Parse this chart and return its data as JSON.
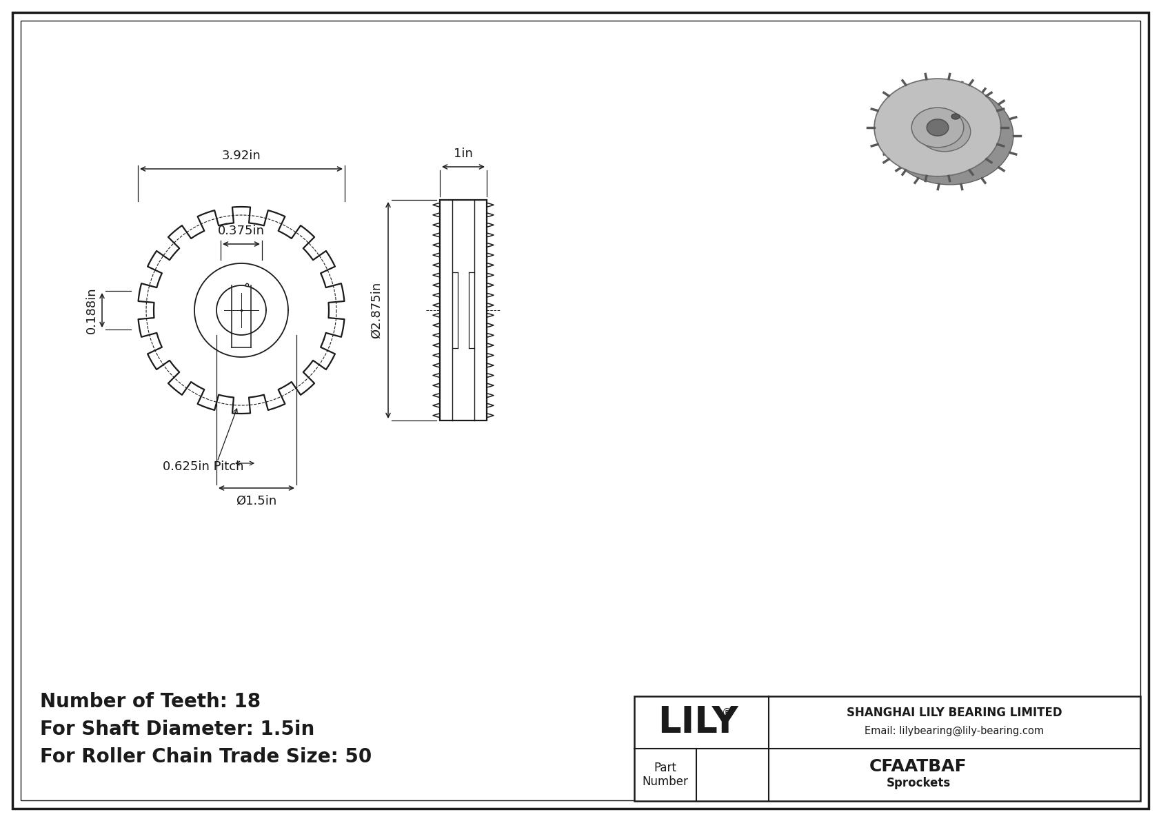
{
  "bg_color": "#ffffff",
  "lc": "#1a1a1a",
  "info_line1": "Number of Teeth: 18",
  "info_line2": "For Shaft Diameter: 1.5in",
  "info_line3": "For Roller Chain Trade Size: 50",
  "dim_outer": "3.92in",
  "dim_hub": "0.375in",
  "dim_face": "0.188in",
  "dim_pitch": "0.625in Pitch",
  "dim_bore": "Ø1.5in",
  "dim_side_w": "1in",
  "dim_side_h": "Ø2.875in",
  "part_number": "CFAATBAF",
  "category": "Sprockets",
  "company": "SHANGHAI LILY BEARING LIMITED",
  "email": "Email: lilybearing@lily-bearing.com"
}
